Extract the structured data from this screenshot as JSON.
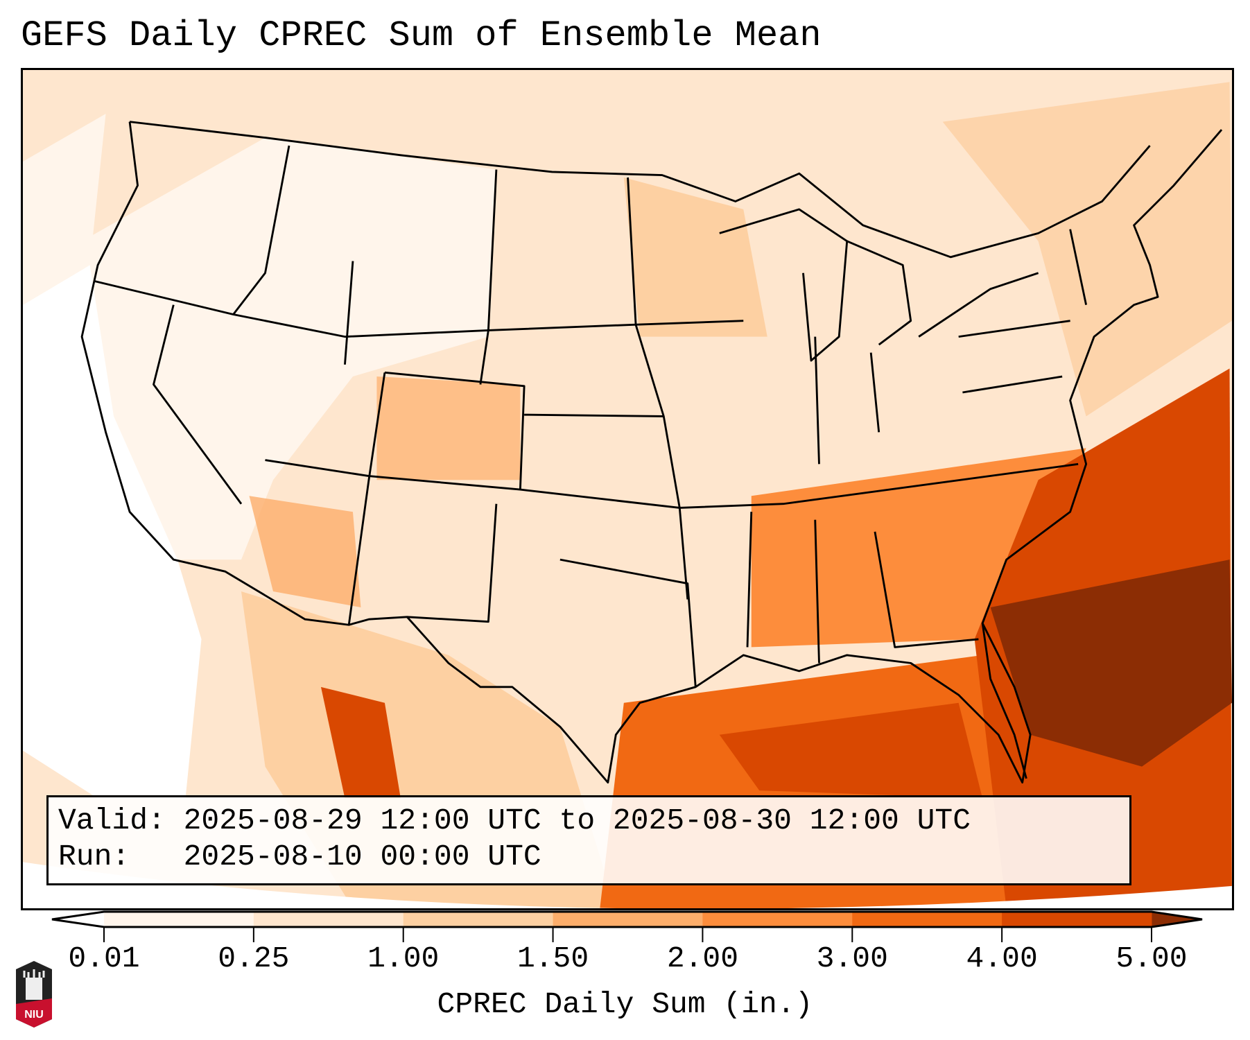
{
  "chart_data": {
    "type": "heatmap",
    "title": "GEFS Daily CPREC Sum of Ensemble Mean",
    "colorbar": {
      "label": "CPREC Daily Sum (in.)",
      "ticks": [
        "0.01",
        "0.25",
        "1.00",
        "1.50",
        "2.00",
        "3.00",
        "4.00",
        "5.00"
      ],
      "levels": [
        0.01,
        0.25,
        1.0,
        1.5,
        2.0,
        3.0,
        4.0,
        5.0
      ],
      "colors": [
        "#fff5eb",
        "#fee6ce",
        "#fdd0a2",
        "#fdae6b",
        "#fd8d3c",
        "#f16913",
        "#d94801"
      ],
      "under_color": "#ffffff",
      "over_color": "#8c2d04",
      "extend": "both"
    },
    "region": "Contiguous United States",
    "annotation": {
      "valid_line": "Valid: 2025-08-29 12:00 UTC to 2025-08-30 12:00 UTC",
      "run_line": "Run:   2025-08-10 00:00 UTC"
    }
  },
  "logo": {
    "text": "NIU"
  }
}
